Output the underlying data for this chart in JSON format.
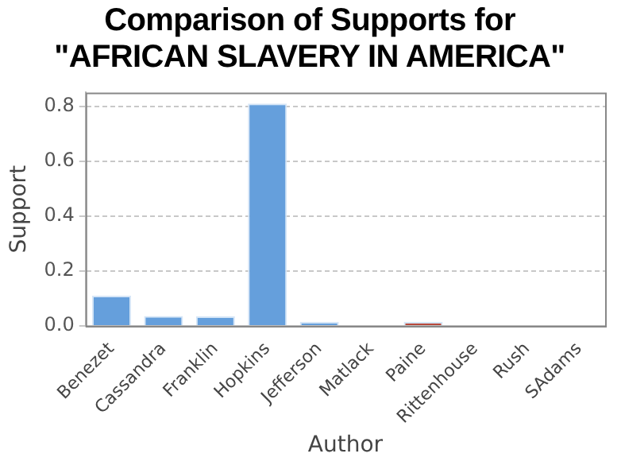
{
  "chart_data": {
    "type": "bar",
    "title": "Comparison of Supports for \"AFRICAN SLAVERY IN AMERICA\"",
    "xlabel": "Author",
    "ylabel": "Support",
    "categories": [
      "Benezet",
      "Cassandra",
      "Franklin",
      "Hopkins",
      "Jefferson",
      "Matlack",
      "Paine",
      "Rittenhouse",
      "Rush",
      "SAdams"
    ],
    "values": [
      0.11,
      0.036,
      0.035,
      0.81,
      0.015,
      0,
      0.015,
      0,
      0,
      0
    ],
    "colors": [
      "#659fdc",
      "#659fdc",
      "#659fdc",
      "#659fdc",
      "#659fdc",
      "#659fdc",
      "#b84a3c",
      "#659fdc",
      "#659fdc",
      "#659fdc"
    ],
    "ylim": [
      0,
      0.85
    ],
    "yticks": [
      {
        "value": 0,
        "label": "0.0"
      },
      0.2,
      0.4,
      0.6,
      0.8
    ],
    "grid": "y",
    "legend": false
  }
}
